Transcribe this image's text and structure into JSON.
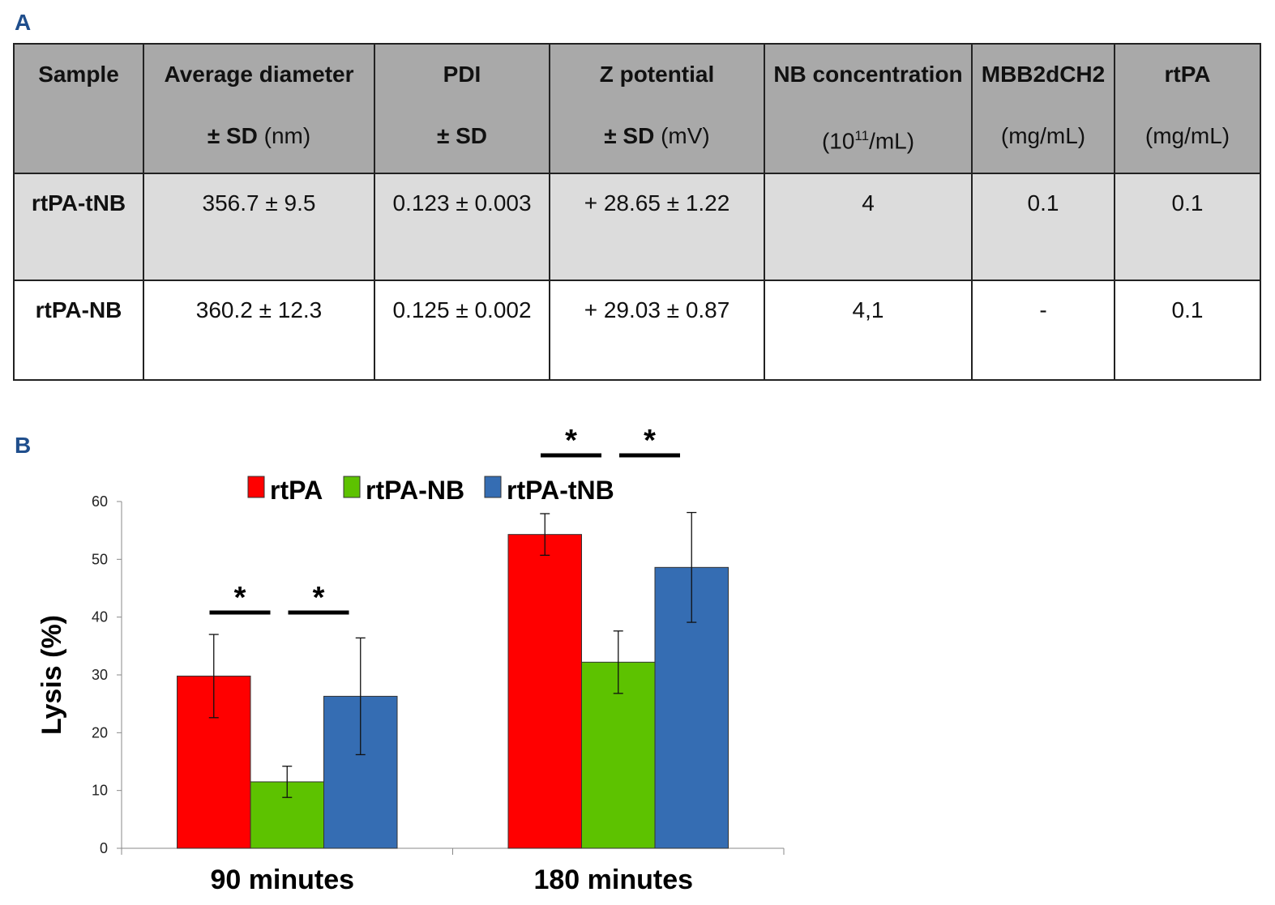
{
  "panel_a_label": "A",
  "panel_b_label": "B",
  "table": {
    "headers": [
      {
        "line1": "Sample",
        "line2_bold": "",
        "line2": ""
      },
      {
        "line1": "Average diameter",
        "line2_bold": "± SD",
        "line2": " (nm)"
      },
      {
        "line1": "PDI",
        "line2_bold": "± SD",
        "line2": ""
      },
      {
        "line1": "Z potential",
        "line2_bold": "± SD",
        "line2": " (mV)"
      },
      {
        "line1": "NB concentration",
        "line2_bold": "",
        "line2": "(10",
        "sup": "11",
        "line2_after": "/mL)"
      },
      {
        "line1": "MBB2dCH2",
        "line2_bold": "",
        "line2": "(mg/mL)"
      },
      {
        "line1": "rtPA",
        "line2_bold": "",
        "line2": "(mg/mL)"
      }
    ],
    "rows": [
      [
        "rtPA-tNB",
        "356.7 ± 9.5",
        "0.123 ± 0.003",
        "+ 28.65 ± 1.22",
        "4",
        "0.1",
        "0.1"
      ],
      [
        "rtPA-NB",
        "360.2 ± 12.3",
        "0.125 ± 0.002",
        "+ 29.03 ± 0.87",
        "4,1",
        "-",
        "0.1"
      ]
    ]
  },
  "chart_data": {
    "type": "bar",
    "categories": [
      "90 minutes",
      "180 minutes"
    ],
    "series": [
      {
        "name": "rtPA",
        "color": "#ff0000",
        "values": [
          29.8,
          54.3
        ],
        "error": [
          7.2,
          3.6
        ]
      },
      {
        "name": "rtPA-NB",
        "color": "#5dc200",
        "values": [
          11.5,
          32.2
        ],
        "error": [
          2.7,
          5.4
        ]
      },
      {
        "name": "rtPA-tNB",
        "color": "#356db3",
        "values": [
          26.3,
          48.6
        ],
        "error": [
          10.1,
          9.5
        ]
      }
    ],
    "ylabel": "Lysis (%)",
    "xlabel": "",
    "ylim": [
      0,
      60
    ],
    "yticks": [
      0,
      10,
      20,
      30,
      40,
      50,
      60
    ],
    "legend_position": "top",
    "significance": [
      {
        "category": "90 minutes",
        "pairs": [
          [
            "rtPA",
            "rtPA-NB"
          ],
          [
            "rtPA-NB",
            "rtPA-tNB"
          ]
        ],
        "symbol": "*"
      },
      {
        "category": "180 minutes",
        "pairs": [
          [
            "rtPA",
            "rtPA-NB"
          ],
          [
            "rtPA-NB",
            "rtPA-tNB"
          ]
        ],
        "symbol": "*"
      }
    ]
  }
}
